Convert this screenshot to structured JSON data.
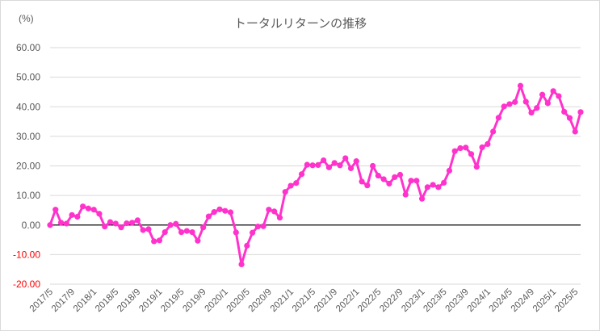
{
  "chart_data": {
    "type": "line",
    "title": "トータルリターンの推移",
    "y_unit_label": "(%)",
    "xlabel": "",
    "ylabel": "",
    "ylim": [
      -20,
      60
    ],
    "y_ticks": [
      "60.00",
      "50.00",
      "40.00",
      "30.00",
      "20.00",
      "10.00",
      "0.00",
      "-10.00",
      "-20.00"
    ],
    "grid": true,
    "legend": "none",
    "colors": {
      "series": "#ff33cc",
      "negative_tick": "#ff0000",
      "tick": "#595959",
      "zero_line": "#000000",
      "grid": "#d9d9d9"
    },
    "x_tick_labels": [
      "2017/5",
      "2017/9",
      "2018/1",
      "2018/5",
      "2018/9",
      "2019/1",
      "2019/5",
      "2019/9",
      "2020/1",
      "2020/5",
      "2020/9",
      "2021/1",
      "2021/5",
      "2021/9",
      "2022/1",
      "2022/5",
      "2022/9",
      "2023/1",
      "2023/5",
      "2023/9",
      "2024/1",
      "2024/5",
      "2024/9",
      "2025/1",
      "2025/5"
    ],
    "series": [
      {
        "values": [
          0.0,
          5.2,
          0.8,
          0.5,
          3.4,
          2.8,
          6.3,
          5.6,
          5.2,
          3.8,
          -0.5,
          1.0,
          0.5,
          -0.8,
          0.6,
          0.8,
          1.6,
          -1.7,
          -1.4,
          -5.5,
          -5.2,
          -2.4,
          0.0,
          0.4,
          -2.4,
          -2.0,
          -2.4,
          -5.3,
          -0.8,
          2.9,
          4.4,
          5.3,
          4.8,
          4.3,
          -2.5,
          -13.3,
          -7.0,
          -2.6,
          -0.5,
          -0.4,
          5.2,
          4.6,
          2.5,
          11.2,
          13.3,
          14.2,
          17.2,
          20.4,
          20.2,
          20.3,
          21.9,
          19.5,
          21.0,
          20.2,
          22.6,
          19.2,
          21.6,
          14.7,
          13.4,
          20.0,
          16.7,
          15.5,
          14.0,
          16.2,
          17.0,
          10.3,
          15.0,
          15.0,
          8.9,
          12.8,
          13.6,
          12.8,
          14.3,
          18.4,
          25.0,
          26.0,
          26.2,
          24.0,
          19.7,
          26.3,
          27.4,
          31.6,
          36.3,
          40.1,
          40.9,
          41.6,
          47.1,
          41.7,
          38.0,
          39.6,
          44.1,
          41.2,
          45.3,
          43.6,
          38.3,
          36.2,
          31.6,
          38.2
        ]
      }
    ]
  }
}
